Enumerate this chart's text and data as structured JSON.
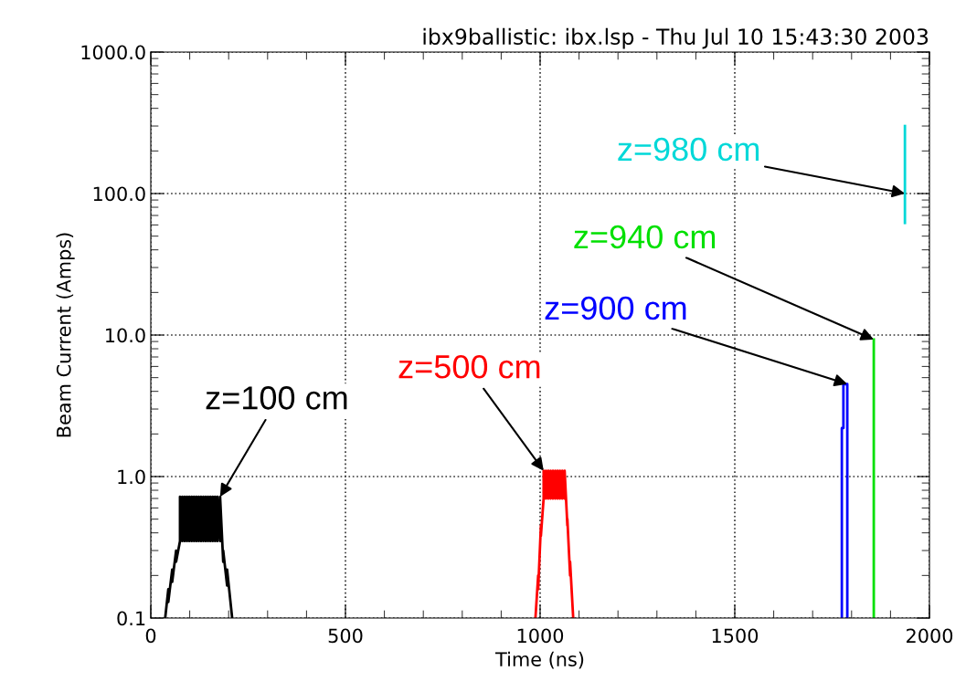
{
  "chart_data": {
    "type": "line",
    "title": "ibx9ballistic: ibx.lsp - Thu Jul 10 15:43:30 2003",
    "xlabel": "Time (ns)",
    "ylabel": "Beam Current (Amps)",
    "log": "y",
    "grid": true,
    "marker": "none",
    "line_style": "solid",
    "xlim": [
      0,
      2000
    ],
    "xticks": [
      0,
      500,
      1000,
      1500,
      2000
    ],
    "ylim": [
      0.1,
      1000
    ],
    "yticks": [
      {
        "value": 0.1,
        "label": "0.1"
      },
      {
        "value": 1,
        "label": "1.0"
      },
      {
        "value": 10,
        "label": "10.0"
      },
      {
        "value": 100,
        "label": "100.0"
      },
      {
        "value": 1000,
        "label": "1000.0"
      }
    ],
    "series": [
      {
        "color": "#000000",
        "x": [
          37,
          45,
          45,
          55,
          55,
          65,
          65,
          75,
          75,
          81,
          81,
          87,
          87,
          93,
          93,
          99,
          99,
          105,
          105,
          111,
          111,
          117,
          117,
          123,
          123,
          129,
          129,
          135,
          135,
          141,
          141,
          147,
          147,
          153,
          153,
          159,
          159,
          165,
          165,
          171,
          171,
          178,
          178,
          186,
          186,
          196,
          196,
          209
        ],
        "values": [
          0.1,
          0.16,
          0.13,
          0.22,
          0.18,
          0.3,
          0.25,
          0.35,
          0.72,
          0.35,
          0.72,
          0.35,
          0.72,
          0.35,
          0.72,
          0.35,
          0.72,
          0.35,
          0.72,
          0.35,
          0.72,
          0.35,
          0.72,
          0.35,
          0.72,
          0.35,
          0.72,
          0.35,
          0.72,
          0.35,
          0.72,
          0.35,
          0.72,
          0.35,
          0.72,
          0.35,
          0.72,
          0.35,
          0.72,
          0.35,
          0.72,
          0.35,
          0.72,
          0.25,
          0.3,
          0.17,
          0.22,
          0.1
        ]
      },
      {
        "color": "#ff0000",
        "x": [
          988,
          995,
          995,
          1002,
          1002,
          1009,
          1009,
          1015,
          1015,
          1021,
          1021,
          1027,
          1027,
          1033,
          1033,
          1039,
          1039,
          1045,
          1045,
          1051,
          1051,
          1057,
          1057,
          1063,
          1063,
          1070,
          1070,
          1077,
          1077,
          1085
        ],
        "values": [
          0.1,
          0.2,
          0.16,
          0.45,
          0.38,
          0.7,
          1.1,
          0.7,
          1.1,
          0.7,
          1.1,
          0.7,
          1.1,
          0.7,
          1.1,
          0.7,
          1.1,
          0.7,
          1.1,
          0.7,
          1.1,
          0.7,
          1.1,
          0.7,
          1.1,
          0.45,
          0.5,
          0.2,
          0.25,
          0.1
        ]
      },
      {
        "color": "#0000ff",
        "x": [
          1775,
          1775,
          1779,
          1779,
          1789,
          1789
        ],
        "values": [
          0.1,
          2.2,
          2.2,
          4.5,
          4.5,
          0.1
        ]
      },
      {
        "color": "#00e000",
        "x": [
          1857,
          1857
        ],
        "values": [
          0.1,
          9.3
        ]
      },
      {
        "color": "#00d8d8",
        "x": [
          1937,
          1937
        ],
        "values": [
          62,
          300
        ]
      }
    ],
    "annotations": [
      {
        "text": "z=100 cm",
        "x": 178,
        "y": 0.72
      },
      {
        "text": "z=500 cm",
        "x": 1009,
        "y": 1.1
      },
      {
        "text": "z=900 cm",
        "x": 1789,
        "y": 4.5
      },
      {
        "text": "z=940 cm",
        "x": 1857,
        "y": 9.3
      },
      {
        "text": "z=980 cm",
        "x": 1937,
        "y": 100
      }
    ]
  }
}
